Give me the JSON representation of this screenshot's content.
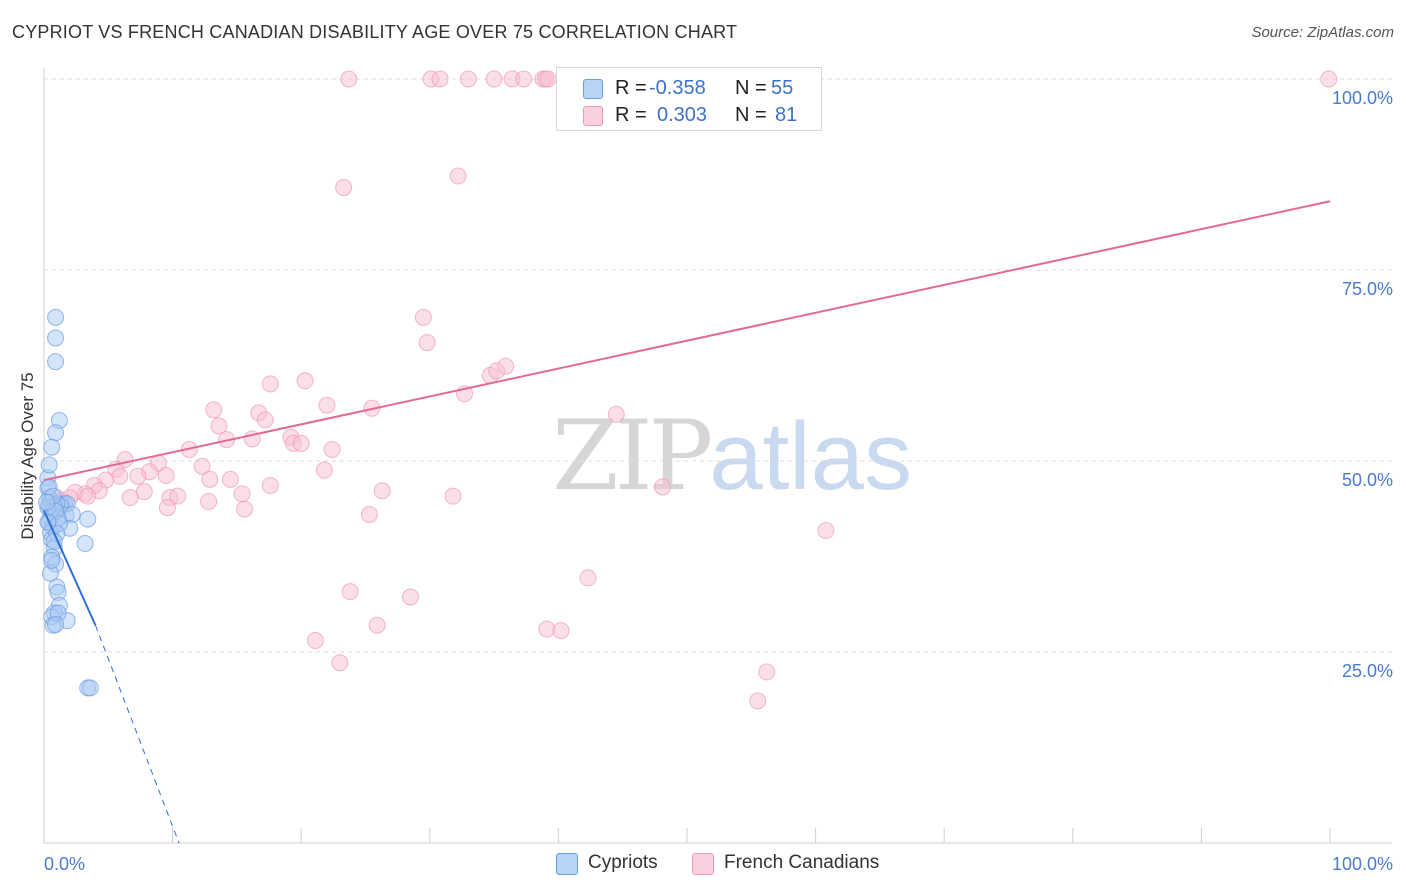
{
  "title": "CYPRIOT VS FRENCH CANADIAN DISABILITY AGE OVER 75 CORRELATION CHART",
  "source": "Source: ZipAtlas.com",
  "watermark": {
    "zip": "ZIP",
    "atlas": "atlas"
  },
  "legend": {
    "cypriots": {
      "r_label": "R =",
      "r_value": "-0.358",
      "n_label": "N =",
      "n_value": "55"
    },
    "french_canadians": {
      "r_label": "R =",
      "r_value": "0.303",
      "n_label": "N =",
      "n_value": "81"
    }
  },
  "bottom_legend": {
    "cypriots": "Cypriots",
    "french_canadians": "French Canadians"
  },
  "colors": {
    "cypriot_fill": "#a9c9f3",
    "cypriot_stroke": "#6c9be0",
    "cypriot_line": "#2f6fd6",
    "fc_fill": "#f8bfd0",
    "fc_stroke": "#ee9ab5",
    "fc_line": "#e46a93",
    "grid": "#dcdcdc",
    "tick_text": "#4a7bd0"
  },
  "chart_data": {
    "type": "scatter",
    "title": "CYPRIOT VS FRENCH CANADIAN DISABILITY AGE OVER 75 CORRELATION CHART",
    "xlabel": "",
    "ylabel": "Disability Age Over 75",
    "xlim": [
      0,
      100
    ],
    "ylim": [
      0,
      100
    ],
    "x_tick_labels": [
      "0.0%",
      "100.0%"
    ],
    "y_ticks": [
      25,
      50,
      75,
      100
    ],
    "y_tick_labels": [
      "25.0%",
      "50.0%",
      "75.0%",
      "100.0%"
    ],
    "grid": true,
    "series": [
      {
        "name": "Cypriots",
        "R": -0.358,
        "N": 55,
        "trend": {
          "x0": 0,
          "y0": 43.5,
          "x1_solid": 4,
          "y1_solid": 28.5,
          "x1_dash": 10.5,
          "y1_dash": 0
        },
        "points": [
          [
            0.3,
            47.8
          ],
          [
            0.3,
            46.5
          ],
          [
            0.4,
            45.2
          ],
          [
            0.5,
            44.6
          ],
          [
            0.4,
            44.0
          ],
          [
            0.6,
            43.3
          ],
          [
            0.5,
            42.6
          ],
          [
            0.4,
            42.0
          ],
          [
            0.7,
            41.3
          ],
          [
            0.5,
            40.6
          ],
          [
            0.6,
            39.7
          ],
          [
            0.8,
            38.6
          ],
          [
            0.6,
            37.4
          ],
          [
            0.9,
            36.5
          ],
          [
            0.5,
            35.3
          ],
          [
            1.0,
            33.5
          ],
          [
            1.1,
            32.8
          ],
          [
            1.2,
            31.1
          ],
          [
            0.8,
            30.1
          ],
          [
            0.6,
            29.6
          ],
          [
            0.7,
            28.5
          ],
          [
            1.4,
            44.4
          ],
          [
            1.6,
            44.4
          ],
          [
            1.8,
            44.4
          ],
          [
            1.3,
            44.1
          ],
          [
            1.0,
            44.4
          ],
          [
            0.8,
            44.1
          ],
          [
            1.7,
            42.9
          ],
          [
            2.2,
            43.0
          ],
          [
            2.0,
            41.2
          ],
          [
            1.1,
            42.5
          ],
          [
            3.4,
            42.4
          ],
          [
            3.2,
            39.2
          ],
          [
            1.2,
            55.3
          ],
          [
            0.9,
            53.7
          ],
          [
            0.6,
            51.8
          ],
          [
            0.4,
            49.5
          ],
          [
            0.9,
            68.8
          ],
          [
            0.9,
            66.1
          ],
          [
            0.9,
            63.0
          ],
          [
            1.8,
            29.1
          ],
          [
            1.1,
            30.1
          ],
          [
            0.9,
            28.6
          ],
          [
            3.4,
            20.3
          ],
          [
            3.6,
            20.3
          ],
          [
            0.3,
            43.9
          ],
          [
            0.4,
            46.6
          ],
          [
            0.7,
            45.4
          ],
          [
            0.9,
            43.4
          ],
          [
            1.2,
            41.8
          ],
          [
            1.0,
            40.5
          ],
          [
            0.8,
            39.5
          ],
          [
            0.2,
            44.6
          ],
          [
            0.3,
            42.0
          ],
          [
            0.6,
            37.0
          ]
        ]
      },
      {
        "name": "French Canadians",
        "R": 0.303,
        "N": 81,
        "trend": {
          "x0": 0,
          "y0": 47.5,
          "x1": 100,
          "y1": 84.0
        },
        "points": [
          [
            23.7,
            100
          ],
          [
            30.1,
            100
          ],
          [
            30.8,
            100
          ],
          [
            33.0,
            100
          ],
          [
            35.0,
            100
          ],
          [
            36.4,
            100
          ],
          [
            37.3,
            100
          ],
          [
            38.8,
            100
          ],
          [
            39.0,
            100
          ],
          [
            39.2,
            100
          ],
          [
            42.3,
            100
          ],
          [
            47.3,
            100
          ],
          [
            99.9,
            100
          ],
          [
            32.2,
            87.3
          ],
          [
            23.3,
            85.8
          ],
          [
            29.5,
            68.8
          ],
          [
            29.8,
            65.5
          ],
          [
            20.3,
            60.5
          ],
          [
            17.6,
            60.1
          ],
          [
            34.7,
            61.2
          ],
          [
            35.2,
            61.8
          ],
          [
            35.9,
            62.4
          ],
          [
            32.7,
            58.8
          ],
          [
            44.5,
            56.1
          ],
          [
            22.0,
            57.3
          ],
          [
            25.5,
            56.9
          ],
          [
            13.2,
            56.7
          ],
          [
            16.7,
            56.3
          ],
          [
            17.2,
            55.4
          ],
          [
            13.6,
            54.6
          ],
          [
            14.2,
            52.8
          ],
          [
            16.2,
            52.9
          ],
          [
            19.2,
            53.1
          ],
          [
            19.4,
            52.3
          ],
          [
            20.0,
            52.3
          ],
          [
            22.4,
            51.5
          ],
          [
            11.3,
            51.5
          ],
          [
            6.3,
            50.2
          ],
          [
            8.9,
            49.7
          ],
          [
            12.3,
            49.3
          ],
          [
            5.6,
            48.9
          ],
          [
            8.2,
            48.6
          ],
          [
            9.5,
            48.1
          ],
          [
            7.3,
            48.0
          ],
          [
            5.9,
            48.0
          ],
          [
            4.8,
            47.5
          ],
          [
            12.9,
            47.6
          ],
          [
            14.5,
            47.6
          ],
          [
            21.8,
            48.8
          ],
          [
            3.9,
            46.8
          ],
          [
            4.3,
            46.1
          ],
          [
            7.8,
            46.0
          ],
          [
            3.2,
            45.7
          ],
          [
            17.6,
            46.8
          ],
          [
            26.3,
            46.1
          ],
          [
            15.4,
            45.7
          ],
          [
            31.8,
            45.4
          ],
          [
            2.4,
            45.9
          ],
          [
            3.4,
            45.4
          ],
          [
            2.0,
            45.2
          ],
          [
            1.0,
            45.2
          ],
          [
            1.4,
            44.8
          ],
          [
            6.7,
            45.2
          ],
          [
            9.8,
            45.2
          ],
          [
            10.4,
            45.4
          ],
          [
            12.8,
            44.7
          ],
          [
            9.6,
            43.9
          ],
          [
            15.6,
            43.7
          ],
          [
            25.3,
            43.0
          ],
          [
            48.1,
            46.6
          ],
          [
            60.8,
            40.9
          ],
          [
            23.8,
            32.9
          ],
          [
            28.5,
            32.2
          ],
          [
            42.3,
            34.7
          ],
          [
            25.9,
            28.5
          ],
          [
            39.1,
            28.0
          ],
          [
            40.2,
            27.8
          ],
          [
            21.1,
            26.5
          ],
          [
            23.0,
            23.6
          ],
          [
            55.5,
            18.6
          ],
          [
            56.2,
            22.4
          ]
        ]
      }
    ]
  }
}
